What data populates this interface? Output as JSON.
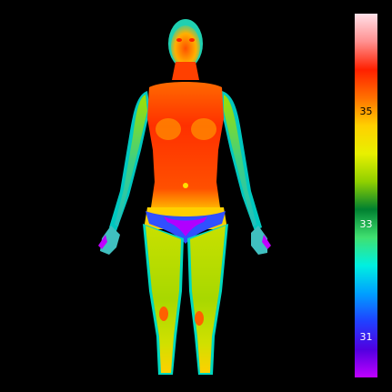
{
  "colors": {
    "background": "#000000",
    "body_gradient": [
      "#ff1a00",
      "#ff6a00",
      "#ffd000",
      "#9be000",
      "#00c060",
      "#00e0e0",
      "#3050ff",
      "#b000ff"
    ],
    "scale_stops": [
      "#ffe0e8",
      "#ff9090",
      "#ff2000",
      "#ff7000",
      "#ffd000",
      "#e8f000",
      "#90d000",
      "#008030",
      "#40e070",
      "#00f0e0",
      "#00a0ff",
      "#2040ff",
      "#5000e0",
      "#c000ff"
    ]
  },
  "scale": {
    "labels": [
      {
        "text": "35",
        "color": "#000000",
        "fraction": 0.27
      },
      {
        "text": "33",
        "color": "#ffffff",
        "fraction": 0.58
      },
      {
        "text": "31",
        "color": "#ffffff",
        "fraction": 0.89
      }
    ]
  }
}
